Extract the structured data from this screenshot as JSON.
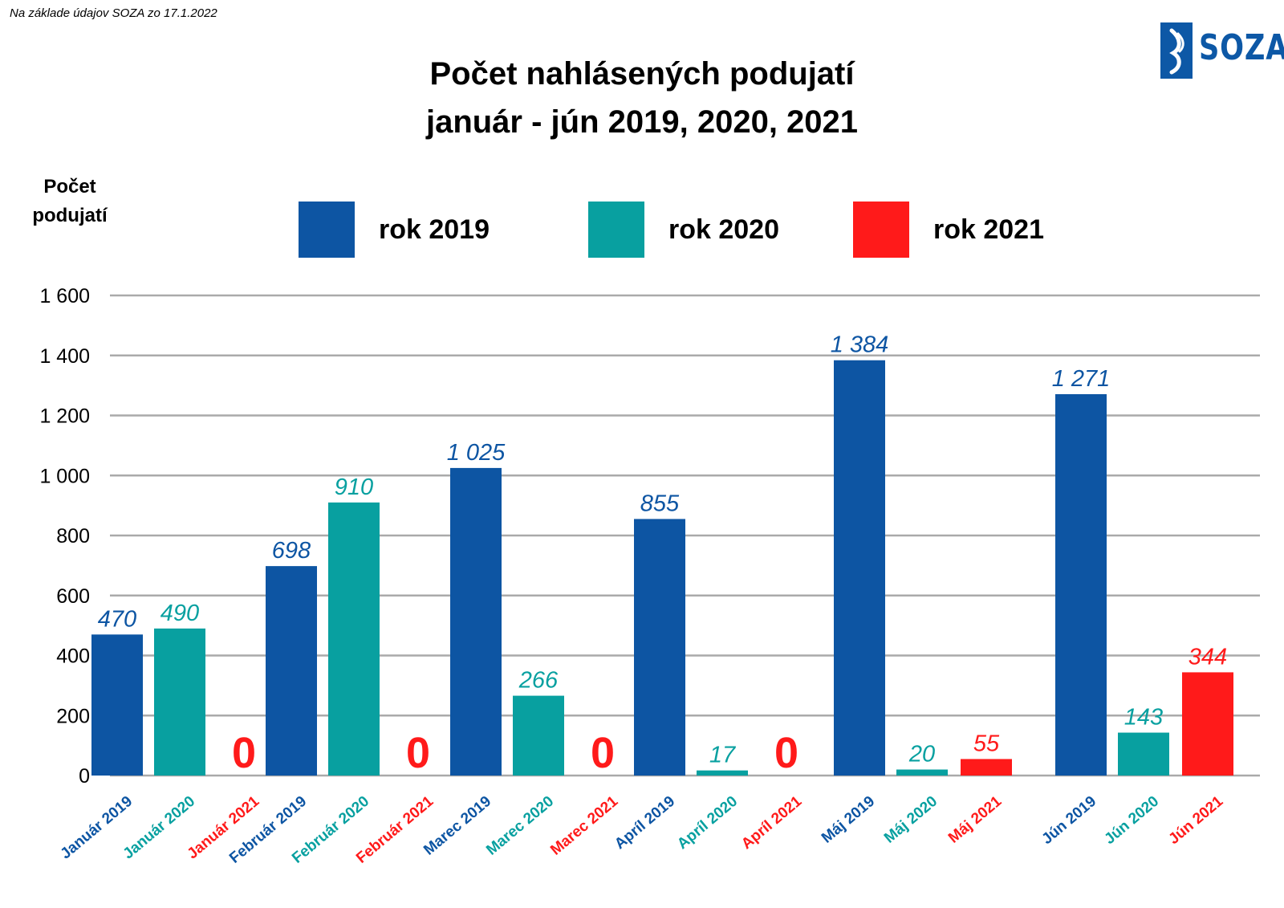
{
  "source_note": "Na základe údajov SOZA zo 17.1.2022",
  "title_line1": "Počet nahlásených podujatí",
  "title_line2": "január - jún 2019, 2020, 2021",
  "logo_text": "SOZA",
  "colors": {
    "y2019": "#0d55a3",
    "y2020": "#08a0a0",
    "y2021": "#ff1a1a",
    "grid": "#aaaaaa"
  },
  "chart_data": {
    "type": "bar",
    "ylabel_line1": "Počet",
    "ylabel_line2": "podujatí",
    "ylim": [
      0,
      1600
    ],
    "yticks": [
      0,
      200,
      400,
      600,
      800,
      1000,
      1200,
      1400,
      1600
    ],
    "ytick_labels": [
      "0",
      "200",
      "400",
      "600",
      "800",
      "1 000",
      "1 200",
      "1 400",
      "1 600"
    ],
    "grid": true,
    "legend_placement": "top",
    "legend": [
      {
        "label": "rok 2019",
        "color": "#0d55a3"
      },
      {
        "label": "rok 2020",
        "color": "#08a0a0"
      },
      {
        "label": "rok 2021",
        "color": "#ff1a1a"
      }
    ],
    "bars": [
      {
        "category": "Január 2019",
        "value": 470,
        "label": "470",
        "series": 2019
      },
      {
        "category": "Január 2020",
        "value": 490,
        "label": "490",
        "series": 2020
      },
      {
        "category": "Január 2021",
        "value": 0,
        "label": "0",
        "series": 2021
      },
      {
        "category": "Február 2019",
        "value": 698,
        "label": "698",
        "series": 2019
      },
      {
        "category": "Február 2020",
        "value": 910,
        "label": "910",
        "series": 2020
      },
      {
        "category": "Február 2021",
        "value": 0,
        "label": "0",
        "series": 2021
      },
      {
        "category": "Marec 2019",
        "value": 1025,
        "label": "1 025",
        "series": 2019
      },
      {
        "category": "Marec 2020",
        "value": 266,
        "label": "266",
        "series": 2020
      },
      {
        "category": "Marec 2021",
        "value": 0,
        "label": "0",
        "series": 2021
      },
      {
        "category": "Apríl 2019",
        "value": 855,
        "label": "855",
        "series": 2019
      },
      {
        "category": "Apríl 2020",
        "value": 17,
        "label": "17",
        "series": 2020
      },
      {
        "category": "Apríl 2021",
        "value": 0,
        "label": "0",
        "series": 2021
      },
      {
        "category": "Máj 2019",
        "value": 1384,
        "label": "1 384",
        "series": 2019
      },
      {
        "category": "Máj 2020",
        "value": 20,
        "label": "20",
        "series": 2020
      },
      {
        "category": "Máj 2021",
        "value": 55,
        "label": "55",
        "series": 2021
      },
      {
        "category": "Jún 2019",
        "value": 1271,
        "label": "1 271",
        "series": 2019
      },
      {
        "category": "Jún 2020",
        "value": 143,
        "label": "143",
        "series": 2020
      },
      {
        "category": "Jún 2021",
        "value": 344,
        "label": "344",
        "series": 2021
      }
    ]
  }
}
